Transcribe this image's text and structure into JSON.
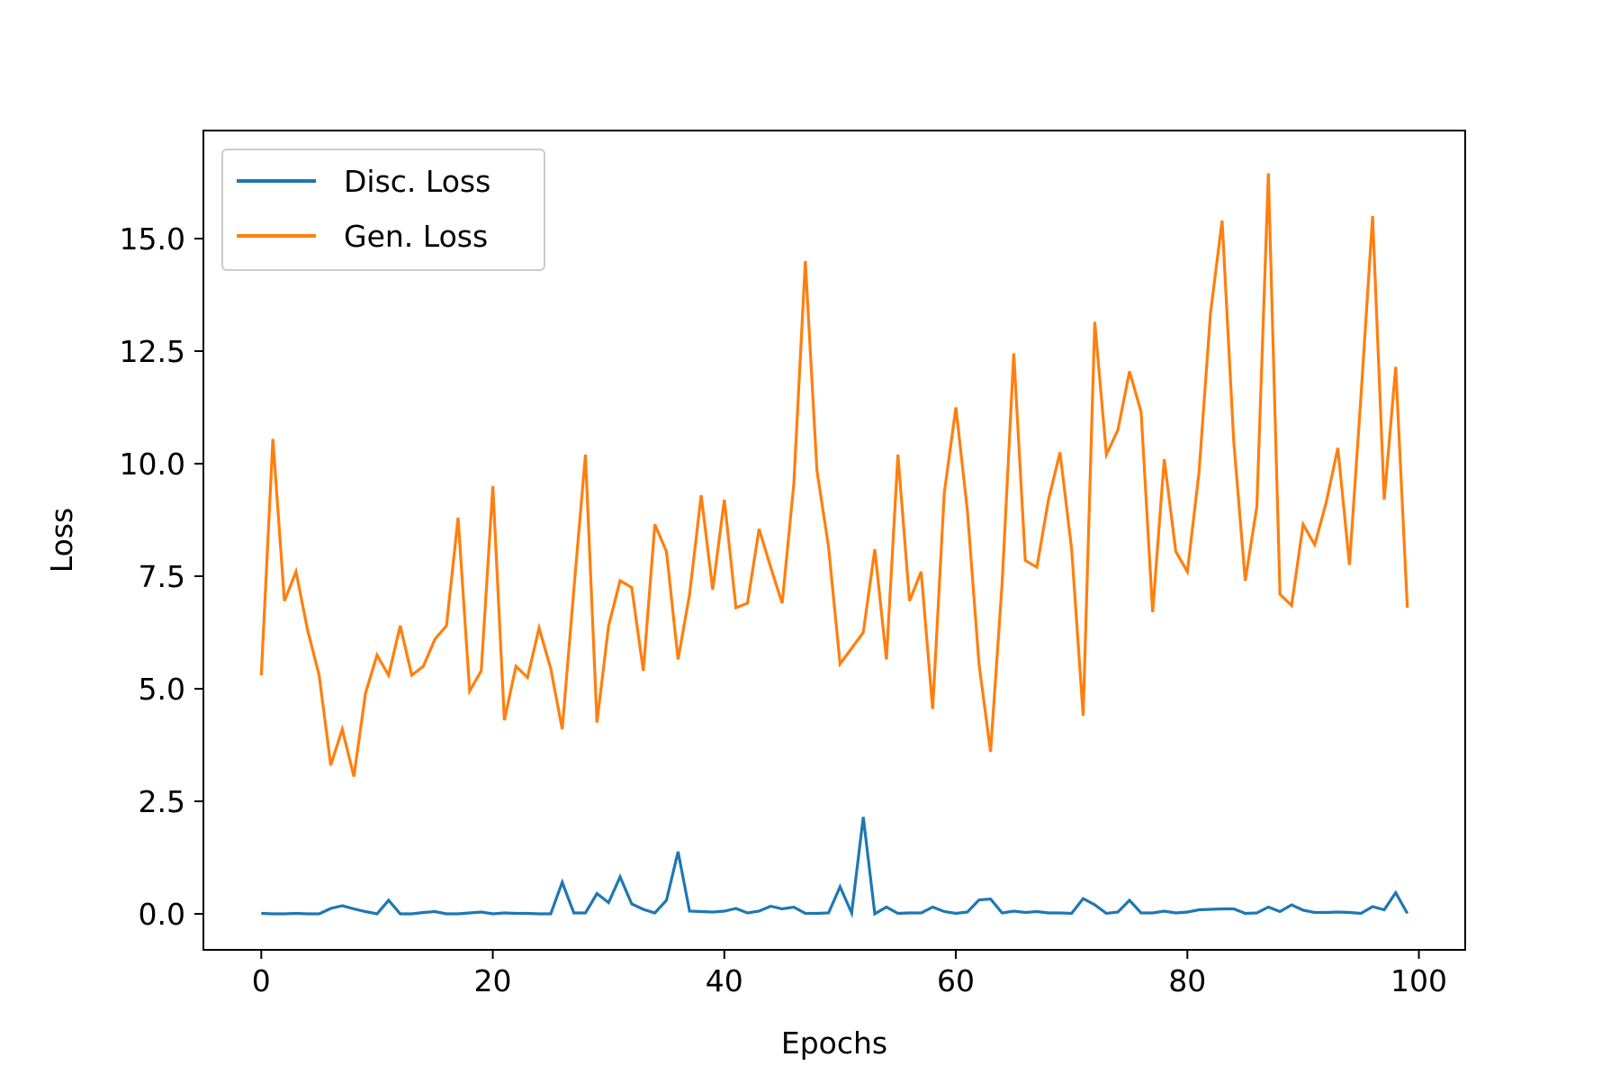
{
  "chart_data": {
    "type": "line",
    "title": "",
    "xlabel": "Epochs",
    "ylabel": "Loss",
    "xlim": [
      -5,
      104
    ],
    "ylim": [
      -0.8,
      17.4
    ],
    "xticks": [
      0,
      20,
      40,
      60,
      80,
      100
    ],
    "yticks": [
      0.0,
      2.5,
      5.0,
      7.5,
      10.0,
      12.5,
      15.0
    ],
    "xtick_labels": [
      "0",
      "20",
      "40",
      "60",
      "80",
      "100"
    ],
    "ytick_labels": [
      "0.0",
      "2.5",
      "5.0",
      "7.5",
      "10.0",
      "12.5",
      "15.0"
    ],
    "grid": false,
    "legend": {
      "position": "top-left"
    },
    "x": [
      0,
      1,
      2,
      3,
      4,
      5,
      6,
      7,
      8,
      9,
      10,
      11,
      12,
      13,
      14,
      15,
      16,
      17,
      18,
      19,
      20,
      21,
      22,
      23,
      24,
      25,
      26,
      27,
      28,
      29,
      30,
      31,
      32,
      33,
      34,
      35,
      36,
      37,
      38,
      39,
      40,
      41,
      42,
      43,
      44,
      45,
      46,
      47,
      48,
      49,
      50,
      51,
      52,
      53,
      54,
      55,
      56,
      57,
      58,
      59,
      60,
      61,
      62,
      63,
      64,
      65,
      66,
      67,
      68,
      69,
      70,
      71,
      72,
      73,
      74,
      75,
      76,
      77,
      78,
      79,
      80,
      81,
      82,
      83,
      84,
      85,
      86,
      87,
      88,
      89,
      90,
      91,
      92,
      93,
      94,
      95,
      96,
      97,
      98,
      99
    ],
    "series": [
      {
        "name": "Disc. Loss",
        "color": "#1f77b4",
        "values": [
          0.01,
          0.0,
          0.0,
          0.01,
          0.0,
          0.0,
          0.12,
          0.18,
          0.11,
          0.05,
          0.0,
          0.3,
          0.0,
          0.0,
          0.03,
          0.05,
          0.0,
          0.0,
          0.02,
          0.04,
          0.0,
          0.02,
          0.01,
          0.01,
          0.0,
          0.0,
          0.7,
          0.02,
          0.02,
          0.45,
          0.25,
          0.82,
          0.22,
          0.1,
          0.02,
          0.3,
          1.38,
          0.06,
          0.05,
          0.04,
          0.06,
          0.12,
          0.02,
          0.06,
          0.17,
          0.11,
          0.15,
          0.01,
          0.01,
          0.02,
          0.6,
          0.02,
          2.15,
          0.0,
          0.15,
          0.01,
          0.02,
          0.02,
          0.15,
          0.05,
          0.01,
          0.04,
          0.31,
          0.33,
          0.02,
          0.06,
          0.03,
          0.05,
          0.02,
          0.02,
          0.01,
          0.34,
          0.2,
          0.01,
          0.04,
          0.3,
          0.02,
          0.02,
          0.06,
          0.02,
          0.04,
          0.09,
          0.1,
          0.11,
          0.11,
          0.01,
          0.02,
          0.15,
          0.05,
          0.2,
          0.08,
          0.03,
          0.03,
          0.04,
          0.03,
          0.01,
          0.16,
          0.09,
          0.47,
          0.01
        ]
      },
      {
        "name": "Gen. Loss",
        "color": "#ff7f0e",
        "values": [
          5.3,
          10.55,
          6.95,
          7.6,
          6.3,
          5.3,
          3.3,
          4.1,
          3.05,
          4.9,
          5.75,
          5.3,
          6.4,
          5.3,
          5.5,
          6.1,
          6.4,
          8.8,
          4.95,
          5.4,
          9.5,
          4.3,
          5.5,
          5.25,
          6.35,
          5.45,
          4.1,
          7.2,
          10.2,
          4.25,
          6.4,
          7.4,
          7.25,
          5.4,
          8.65,
          8.05,
          5.65,
          7.1,
          9.3,
          7.2,
          9.2,
          6.8,
          6.9,
          8.55,
          7.7,
          6.9,
          9.55,
          14.5,
          9.85,
          8.15,
          5.55,
          5.9,
          6.25,
          8.1,
          5.65,
          10.2,
          6.95,
          7.6,
          4.55,
          9.35,
          11.25,
          8.95,
          5.55,
          3.6,
          7.35,
          12.45,
          7.85,
          7.7,
          9.2,
          10.25,
          8.1,
          4.4,
          13.15,
          10.2,
          10.75,
          12.05,
          11.15,
          6.7,
          10.1,
          8.05,
          7.6,
          9.8,
          13.35,
          15.4,
          10.5,
          7.4,
          9.05,
          16.45,
          7.1,
          6.85,
          8.65,
          8.2,
          9.15,
          10.35,
          7.75,
          11.5,
          15.5,
          9.2,
          12.15,
          6.8
        ]
      }
    ]
  }
}
